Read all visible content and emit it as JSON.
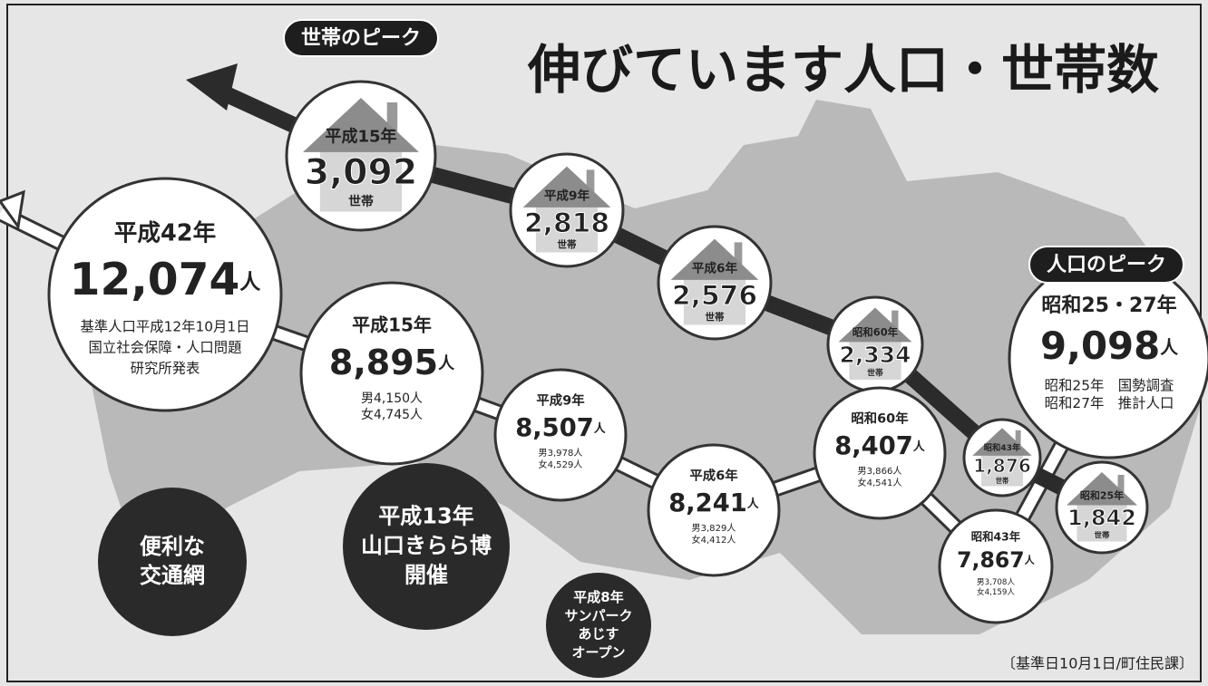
{
  "title": "伸びています人口・世帯数",
  "household_peak_label": "世帯のピーク",
  "population_peak_label": "人口のピーク",
  "households": [
    {
      "era": "平成15年",
      "count": "3,092",
      "unit": "世帯"
    },
    {
      "era": "平成9年",
      "count": "2,818",
      "unit": "世帯"
    },
    {
      "era": "平成6年",
      "count": "2,576",
      "unit": "世帯"
    },
    {
      "era": "昭和60年",
      "count": "2,334",
      "unit": "世帯"
    },
    {
      "era": "昭和43年",
      "count": "1,876",
      "unit": "世帯"
    },
    {
      "era": "昭和25年",
      "count": "1,842",
      "unit": "世帯"
    }
  ],
  "population": [
    {
      "era": "平成42年",
      "count": "12,074",
      "unit": "人",
      "notes": [
        "基準人口平成12年10月1日",
        "国立社会保障・人口問題",
        "研究所発表"
      ]
    },
    {
      "era": "平成15年",
      "count": "8,895",
      "unit": "人",
      "notes": [
        "男4,150人",
        "女4,745人"
      ]
    },
    {
      "era": "平成9年",
      "count": "8,507",
      "unit": "人",
      "notes": [
        "男3,978人",
        "女4,529人"
      ]
    },
    {
      "era": "平成6年",
      "count": "8,241",
      "unit": "人",
      "notes": [
        "男3,829人",
        "女4,412人"
      ]
    },
    {
      "era": "昭和60年",
      "count": "8,407",
      "unit": "人",
      "notes": [
        "男3,866人",
        "女4,541人"
      ]
    },
    {
      "era": "昭和43年",
      "count": "7,867",
      "unit": "人",
      "notes": [
        "男3,708人",
        "女4,159人"
      ]
    },
    {
      "era": "昭和25・27年",
      "count": "9,098",
      "unit": "人",
      "notes": [
        "昭和25年　国勢調査",
        "昭和27年　推計人口"
      ]
    }
  ],
  "events": [
    {
      "lines": [
        "便利な",
        "交通網"
      ]
    },
    {
      "lines": [
        "平成13年",
        "山口きらら博",
        "開催"
      ]
    },
    {
      "lines": [
        "平成8年",
        "サンパーク",
        "あじす",
        "オープン"
      ]
    }
  ],
  "source": "〔基準日10月1日/町住民課〕"
}
